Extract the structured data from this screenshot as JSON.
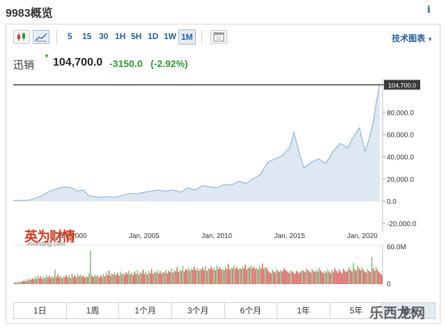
{
  "header": {
    "title": "9983概览",
    "info_icon": "info-icon"
  },
  "toolbar": {
    "icons": [
      "candlestick-icon",
      "area-chart-icon",
      "calendar-icon"
    ],
    "intervals": [
      "5",
      "15",
      "30",
      "1H",
      "5H",
      "1D",
      "1W",
      "1M"
    ],
    "active_interval": "1M",
    "tools_label": "技术图表"
  },
  "quote": {
    "name": "迅销",
    "price": "104,700.0",
    "change": "-3150.0",
    "change_pct": "(-2.92%)",
    "change_color": "#2e9a2e"
  },
  "chart_data": {
    "type": "area",
    "x_ticks": [
      "Jan, 2000",
      "Jan, 2005",
      "Jan, 2010",
      "Jan, 2015",
      "Jan, 2020"
    ],
    "y_ticks": [
      "80,000.0",
      "60,000.0",
      "40,000.0",
      "20,000.0",
      "0.0",
      "-20,000.0"
    ],
    "last_price_label": "104,700.0",
    "ylim": [
      -20000,
      110000
    ],
    "xlim": [
      1996.0,
      2021.4
    ],
    "series": [
      {
        "x": [
          1996.0,
          1997.0,
          1997.5,
          1998.0,
          1998.5,
          1999.0,
          1999.5,
          2000.0,
          2000.4,
          2000.8,
          2001.2,
          2001.6,
          2002.0,
          2002.5,
          2003.0,
          2003.5,
          2004.0,
          2004.5,
          2005.0,
          2005.5,
          2006.0,
          2006.5,
          2007.0,
          2007.5,
          2008.0,
          2008.5,
          2009.0,
          2009.5,
          2010.0,
          2010.5,
          2011.0,
          2011.5,
          2012.0,
          2012.5,
          2013.0,
          2013.5,
          2014.0,
          2014.5,
          2015.0,
          2015.3,
          2015.7,
          2016.0,
          2016.5,
          2017.0,
          2017.5,
          2018.0,
          2018.5,
          2019.0,
          2019.4,
          2019.8,
          2020.2,
          2020.5,
          2020.8,
          2021.0,
          2021.2
        ],
        "values": [
          500,
          800,
          2500,
          5000,
          9000,
          11000,
          13000,
          12000,
          9000,
          10000,
          5000,
          4000,
          3500,
          4000,
          3500,
          5000,
          7000,
          6500,
          8000,
          9000,
          10000,
          9000,
          10000,
          8000,
          12000,
          10000,
          14000,
          13000,
          12000,
          15000,
          14500,
          18000,
          16000,
          20000,
          24000,
          35000,
          38000,
          41000,
          48000,
          62000,
          42000,
          30000,
          35000,
          38000,
          34000,
          45000,
          52000,
          48000,
          58000,
          66000,
          45000,
          57000,
          74000,
          92000,
          104700
        ],
        "line_color": "#8fb5d6",
        "fill_color": "#dde8f2"
      }
    ],
    "volume": {
      "max_label": "60.0M",
      "zero_label": "0",
      "up_color": "#7ec27e",
      "down_color": "#d9625e",
      "values": [
        2,
        3,
        2,
        4,
        3,
        5,
        4,
        6,
        5,
        8,
        6,
        9,
        7,
        10,
        8,
        12,
        9,
        14,
        10,
        13,
        9,
        12,
        10,
        15,
        11,
        14,
        10,
        13,
        11,
        24,
        12,
        16,
        11,
        14,
        10,
        13,
        12,
        15,
        11,
        14,
        10,
        18,
        12,
        15,
        11,
        17,
        13,
        16,
        12,
        14,
        11,
        13,
        12,
        18,
        55,
        14,
        12,
        16,
        13,
        15,
        11,
        14,
        12,
        17,
        13,
        19,
        15,
        22,
        14,
        18,
        16,
        20,
        15,
        19,
        14,
        21,
        16,
        18,
        15,
        20,
        17,
        22,
        16,
        19,
        15,
        21,
        17,
        23,
        16,
        20,
        18,
        24,
        17,
        21,
        16,
        22,
        18,
        25,
        17,
        21,
        19,
        23,
        18,
        22,
        17,
        20,
        19,
        24,
        18,
        22,
        20,
        26,
        19,
        23,
        21,
        28,
        20,
        24,
        22,
        30,
        21,
        25,
        23,
        27,
        22,
        26,
        24,
        29,
        23,
        27,
        22,
        25,
        24,
        28,
        23,
        30,
        22,
        26,
        25,
        29,
        24,
        27,
        23,
        31,
        25,
        28,
        24,
        26,
        23,
        29,
        25,
        33,
        24,
        27,
        26,
        30,
        25,
        28,
        24,
        26,
        25,
        29,
        26,
        32,
        24,
        28,
        27,
        31,
        26,
        29,
        25,
        27,
        24,
        30,
        26,
        34,
        25,
        28,
        27,
        22,
        20,
        18,
        24,
        21,
        19,
        25,
        22,
        20,
        23,
        21,
        26,
        24,
        22,
        20,
        18,
        23,
        21,
        19,
        17,
        22,
        20,
        18,
        21,
        24,
        22,
        20,
        26,
        23,
        21,
        19,
        25,
        22,
        20,
        24,
        21,
        27,
        23,
        20,
        18,
        22,
        19,
        24,
        21,
        18,
        23,
        20,
        26,
        22,
        19,
        24,
        21,
        18,
        25,
        22,
        20,
        23,
        28,
        24,
        21,
        35,
        25,
        22,
        30,
        26,
        23,
        28,
        24,
        21,
        19,
        25,
        22,
        20,
        45,
        26,
        22,
        28,
        24,
        20,
        18,
        15
      ]
    }
  },
  "ranges": {
    "items": [
      "1日",
      "1周",
      "1个月",
      "3个月",
      "6个月",
      "1年",
      "5年",
      "最大"
    ],
    "active_index": 7
  },
  "branding": {
    "logo_text": "英为财情",
    "logo_sub": "investing.com"
  },
  "watermark": {
    "text": "乐西龙网"
  }
}
